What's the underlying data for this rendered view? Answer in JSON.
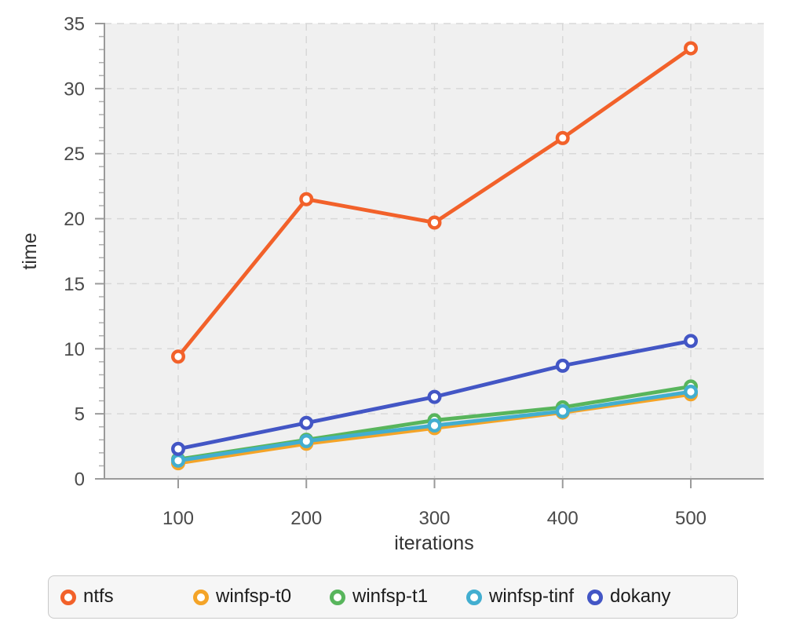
{
  "chart_data": {
    "type": "line",
    "title": "",
    "xlabel": "iterations",
    "ylabel": "time",
    "x": [
      100,
      200,
      300,
      400,
      500
    ],
    "xticks": [
      100,
      200,
      300,
      400,
      500
    ],
    "ylim": [
      0,
      35
    ],
    "yticks": [
      0,
      5,
      10,
      15,
      20,
      25,
      30,
      35
    ],
    "yminor_step": 1,
    "grid": true,
    "legend_position": "bottom",
    "series": [
      {
        "name": "ntfs",
        "color": "#f2612a",
        "values": [
          9.4,
          21.5,
          19.7,
          26.2,
          33.1
        ]
      },
      {
        "name": "winfsp-t0",
        "color": "#f4a428",
        "values": [
          1.2,
          2.7,
          3.9,
          5.1,
          6.5
        ]
      },
      {
        "name": "winfsp-t1",
        "color": "#58b55c",
        "values": [
          1.5,
          3.0,
          4.5,
          5.5,
          7.1
        ]
      },
      {
        "name": "winfsp-tinf",
        "color": "#42aed0",
        "values": [
          1.4,
          2.9,
          4.1,
          5.2,
          6.7
        ]
      },
      {
        "name": "dokany",
        "color": "#4356c5",
        "values": [
          2.3,
          4.3,
          6.3,
          8.7,
          10.6
        ]
      }
    ]
  },
  "style_colors": {
    "plot_background": "#f0f0f0",
    "gridline": "#d8d8d8",
    "axis": "#9a9a9a",
    "minor_tick": "#b0b0b0",
    "tick_label": "#4a4a4a",
    "axis_label": "#333333"
  }
}
